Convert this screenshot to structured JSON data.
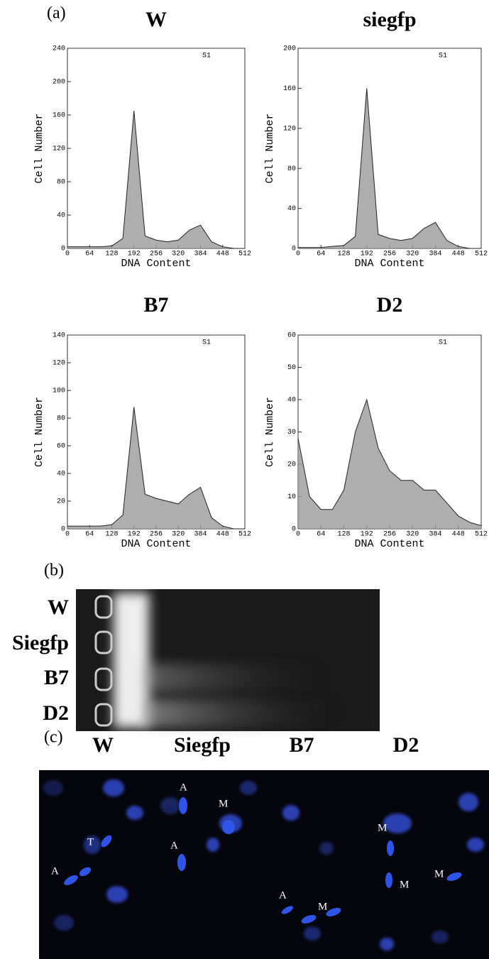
{
  "panel_a": {
    "label": "(a)"
  },
  "chart_data": [
    {
      "type": "area",
      "title": "W",
      "annotation": "S1",
      "x_label": "DNA Content",
      "y_label": "Cell Number",
      "color": "#9a9a9a",
      "x": [
        0,
        32,
        64,
        96,
        128,
        160,
        192,
        224,
        256,
        288,
        320,
        352,
        384,
        416,
        448,
        480,
        512
      ],
      "values": [
        2,
        2,
        2,
        2,
        3,
        12,
        165,
        15,
        10,
        8,
        10,
        22,
        28,
        8,
        2,
        0,
        0
      ],
      "xlim": [
        0,
        512
      ],
      "ylim": [
        0,
        240
      ],
      "xticks": [
        0,
        64,
        128,
        192,
        256,
        320,
        384,
        448,
        512
      ],
      "yticks": [
        0,
        40,
        80,
        120,
        160,
        200,
        240
      ]
    },
    {
      "type": "area",
      "title": "siegfp",
      "annotation": "S1",
      "x_label": "DNA Content",
      "y_label": "Cell Number",
      "color": "#9a9a9a",
      "x": [
        0,
        32,
        64,
        96,
        128,
        160,
        192,
        224,
        256,
        288,
        320,
        352,
        384,
        416,
        448,
        480,
        512
      ],
      "values": [
        1,
        1,
        1,
        2,
        3,
        12,
        160,
        14,
        10,
        8,
        10,
        20,
        26,
        8,
        2,
        0,
        0
      ],
      "xlim": [
        0,
        512
      ],
      "ylim": [
        0,
        200
      ],
      "xticks": [
        0,
        64,
        128,
        192,
        256,
        320,
        384,
        448,
        512
      ],
      "yticks": [
        0,
        40,
        80,
        120,
        160,
        200
      ]
    },
    {
      "type": "area",
      "title": "B7",
      "annotation": "S1",
      "x_label": "DNA Content",
      "y_label": "Cell Number",
      "color": "#9a9a9a",
      "x": [
        0,
        32,
        64,
        96,
        128,
        160,
        192,
        224,
        256,
        288,
        320,
        352,
        384,
        416,
        448,
        480,
        512
      ],
      "values": [
        2,
        2,
        2,
        2,
        3,
        10,
        88,
        25,
        22,
        20,
        18,
        25,
        30,
        8,
        2,
        0,
        0
      ],
      "xlim": [
        0,
        512
      ],
      "ylim": [
        0,
        140
      ],
      "xticks": [
        0,
        64,
        128,
        192,
        256,
        320,
        384,
        448,
        512
      ],
      "yticks": [
        0,
        20,
        40,
        60,
        80,
        100,
        120,
        140
      ]
    },
    {
      "type": "area",
      "title": "D2",
      "annotation": "S1",
      "x_label": "DNA Content",
      "y_label": "Cell Number",
      "color": "#9a9a9a",
      "x": [
        0,
        32,
        64,
        96,
        128,
        160,
        192,
        224,
        256,
        288,
        320,
        352,
        384,
        416,
        448,
        480,
        512
      ],
      "values": [
        28,
        10,
        6,
        6,
        12,
        30,
        40,
        25,
        18,
        15,
        15,
        12,
        12,
        8,
        4,
        2,
        1
      ],
      "xlim": [
        0,
        512
      ],
      "ylim": [
        0,
        60
      ],
      "xticks": [
        0,
        64,
        128,
        192,
        256,
        320,
        384,
        448,
        512
      ],
      "yticks": [
        0,
        10,
        20,
        30,
        40,
        50,
        60
      ]
    }
  ],
  "panel_b": {
    "label": "(b)",
    "lanes": [
      "W",
      "Siegfp",
      "B7",
      "D2"
    ]
  },
  "panel_c": {
    "label": "(c)",
    "columns": [
      {
        "title": "W",
        "marks": [
          "T",
          "A"
        ]
      },
      {
        "title": "Siegfp",
        "marks": [
          "A",
          "M",
          "A"
        ]
      },
      {
        "title": "B7",
        "marks": [
          "A",
          "M"
        ]
      },
      {
        "title": "D2",
        "marks": [
          "M",
          "M",
          "M"
        ]
      }
    ]
  }
}
